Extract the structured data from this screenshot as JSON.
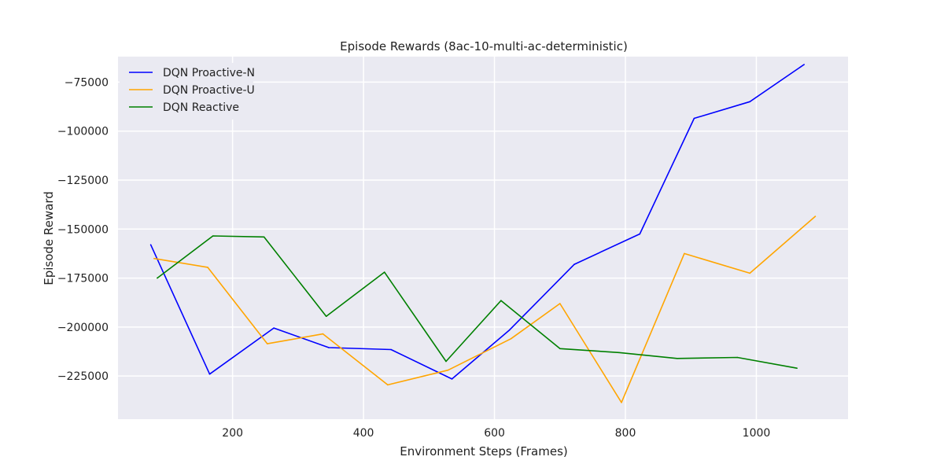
{
  "chart_data": {
    "type": "line",
    "title": "Episode Rewards (8ac-10-multi-ac-deterministic)",
    "xlabel": "Environment Steps (Frames)",
    "ylabel": "Episode Reward",
    "xlim": [
      25,
      1140
    ],
    "ylim": [
      -247000,
      -62000
    ],
    "xticks": [
      200,
      400,
      600,
      800,
      1000
    ],
    "xtick_labels": [
      "200",
      "400",
      "600",
      "800",
      "1000"
    ],
    "yticks": [
      -225000,
      -200000,
      -175000,
      -150000,
      -125000,
      -100000,
      -75000
    ],
    "ytick_labels": [
      "−225000",
      "−200000",
      "−175000",
      "−150000",
      "−125000",
      "−100000",
      "−75000"
    ],
    "grid": true,
    "legend_position": "top-left",
    "series": [
      {
        "name": "DQN Proactive-N",
        "color": "#0000ff",
        "x": [
          75,
          165,
          263,
          347,
          442,
          535,
          623,
          722,
          822,
          905,
          990,
          1073
        ],
        "y": [
          -158000,
          -224000,
          -200500,
          -210500,
          -211500,
          -226500,
          -201500,
          -168000,
          -152500,
          -93500,
          -85000,
          -66000
        ]
      },
      {
        "name": "DQN Proactive-U",
        "color": "#ffa500",
        "x": [
          80,
          162,
          253,
          338,
          437,
          529,
          625,
          700,
          794,
          890,
          990,
          1090
        ],
        "y": [
          -165000,
          -169500,
          -208500,
          -203500,
          -229500,
          -222000,
          -206000,
          -188000,
          -238500,
          -162500,
          -172500,
          -143500
        ]
      },
      {
        "name": "DQN Reactive",
        "color": "#008000",
        "x": [
          85,
          170,
          248,
          343,
          432,
          526,
          610,
          700,
          790,
          879,
          971,
          1062
        ],
        "y": [
          -175000,
          -153500,
          -154000,
          -194500,
          -172000,
          -217500,
          -186500,
          -211000,
          -213000,
          -216000,
          -215500,
          -221000
        ]
      }
    ]
  }
}
